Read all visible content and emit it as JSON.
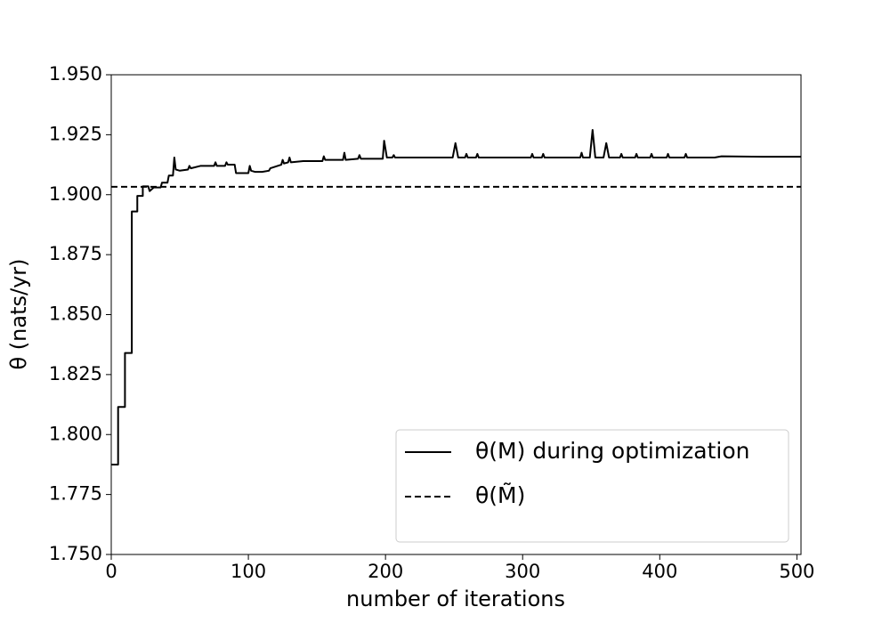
{
  "chart_data": {
    "type": "line",
    "xlabel": "number of iterations",
    "ylabel": "θ (nats/yr)",
    "xlim": [
      0,
      503
    ],
    "ylim": [
      1.75,
      1.95
    ],
    "xticks": [
      0,
      100,
      200,
      300,
      400,
      500
    ],
    "yticks": [
      {
        "value": 1.75,
        "label": "1.750"
      },
      {
        "value": 1.775,
        "label": "1.775"
      },
      {
        "value": 1.8,
        "label": "1.800"
      },
      {
        "value": 1.825,
        "label": "1.825"
      },
      {
        "value": 1.85,
        "label": "1.850"
      },
      {
        "value": 1.875,
        "label": "1.875"
      },
      {
        "value": 1.9,
        "label": "1.900"
      },
      {
        "value": 1.925,
        "label": "1.925"
      },
      {
        "value": 1.95,
        "label": "1.950"
      }
    ],
    "legend": "lower right",
    "series": [
      {
        "name": "θ(M) during optimization",
        "color": "#000000",
        "style": "solid",
        "x": [
          0,
          5,
          5,
          10,
          10,
          15,
          15,
          19,
          19,
          23,
          23,
          27,
          28,
          31,
          32,
          36,
          37,
          41,
          42,
          45,
          46,
          47,
          50,
          56,
          57,
          58,
          65,
          75,
          76,
          77,
          83,
          84,
          85,
          90,
          91,
          100,
          101,
          102,
          105,
          110,
          115,
          116,
          124,
          125,
          126,
          129,
          130,
          131,
          140,
          154,
          155,
          156,
          169,
          170,
          171,
          180,
          181,
          182,
          198,
          199,
          201,
          205,
          206,
          207,
          230,
          249,
          251,
          253,
          258,
          259,
          260,
          266,
          267,
          268,
          306,
          307,
          308,
          314,
          315,
          316,
          342,
          343,
          344,
          349,
          351,
          353,
          359,
          361,
          363,
          371,
          372,
          373,
          382,
          383,
          384,
          393,
          394,
          395,
          405,
          406,
          407,
          418,
          419,
          420,
          440,
          445,
          475,
          503
        ],
        "values": [
          1.7875,
          1.7875,
          1.8115,
          1.8115,
          1.834,
          1.834,
          1.893,
          1.893,
          1.8995,
          1.8995,
          1.9035,
          1.9035,
          1.9015,
          1.903,
          1.903,
          1.903,
          1.905,
          1.905,
          1.908,
          1.908,
          1.9155,
          1.9105,
          1.91,
          1.9105,
          1.912,
          1.911,
          1.912,
          1.912,
          1.9135,
          1.912,
          1.912,
          1.9135,
          1.9125,
          1.9125,
          1.909,
          1.909,
          1.912,
          1.91,
          1.9095,
          1.9095,
          1.91,
          1.911,
          1.9125,
          1.9145,
          1.913,
          1.9135,
          1.9155,
          1.9135,
          1.914,
          1.914,
          1.916,
          1.9145,
          1.9145,
          1.9175,
          1.9145,
          1.915,
          1.9165,
          1.915,
          1.915,
          1.9225,
          1.9155,
          1.9155,
          1.9165,
          1.9155,
          1.9155,
          1.9155,
          1.9215,
          1.9155,
          1.9155,
          1.917,
          1.9155,
          1.9155,
          1.917,
          1.9155,
          1.9155,
          1.917,
          1.9155,
          1.9155,
          1.917,
          1.9155,
          1.9155,
          1.9175,
          1.9155,
          1.9155,
          1.927,
          1.9155,
          1.9155,
          1.9215,
          1.9155,
          1.9155,
          1.917,
          1.9155,
          1.9155,
          1.917,
          1.9155,
          1.9155,
          1.917,
          1.9155,
          1.9155,
          1.917,
          1.9155,
          1.9155,
          1.917,
          1.9155,
          1.9155,
          1.916,
          1.9158,
          1.9158
        ]
      }
    ],
    "reference_line": {
      "name": "θ(M̃)",
      "color": "#000000",
      "style": "dashed",
      "value": 1.9033
    }
  }
}
